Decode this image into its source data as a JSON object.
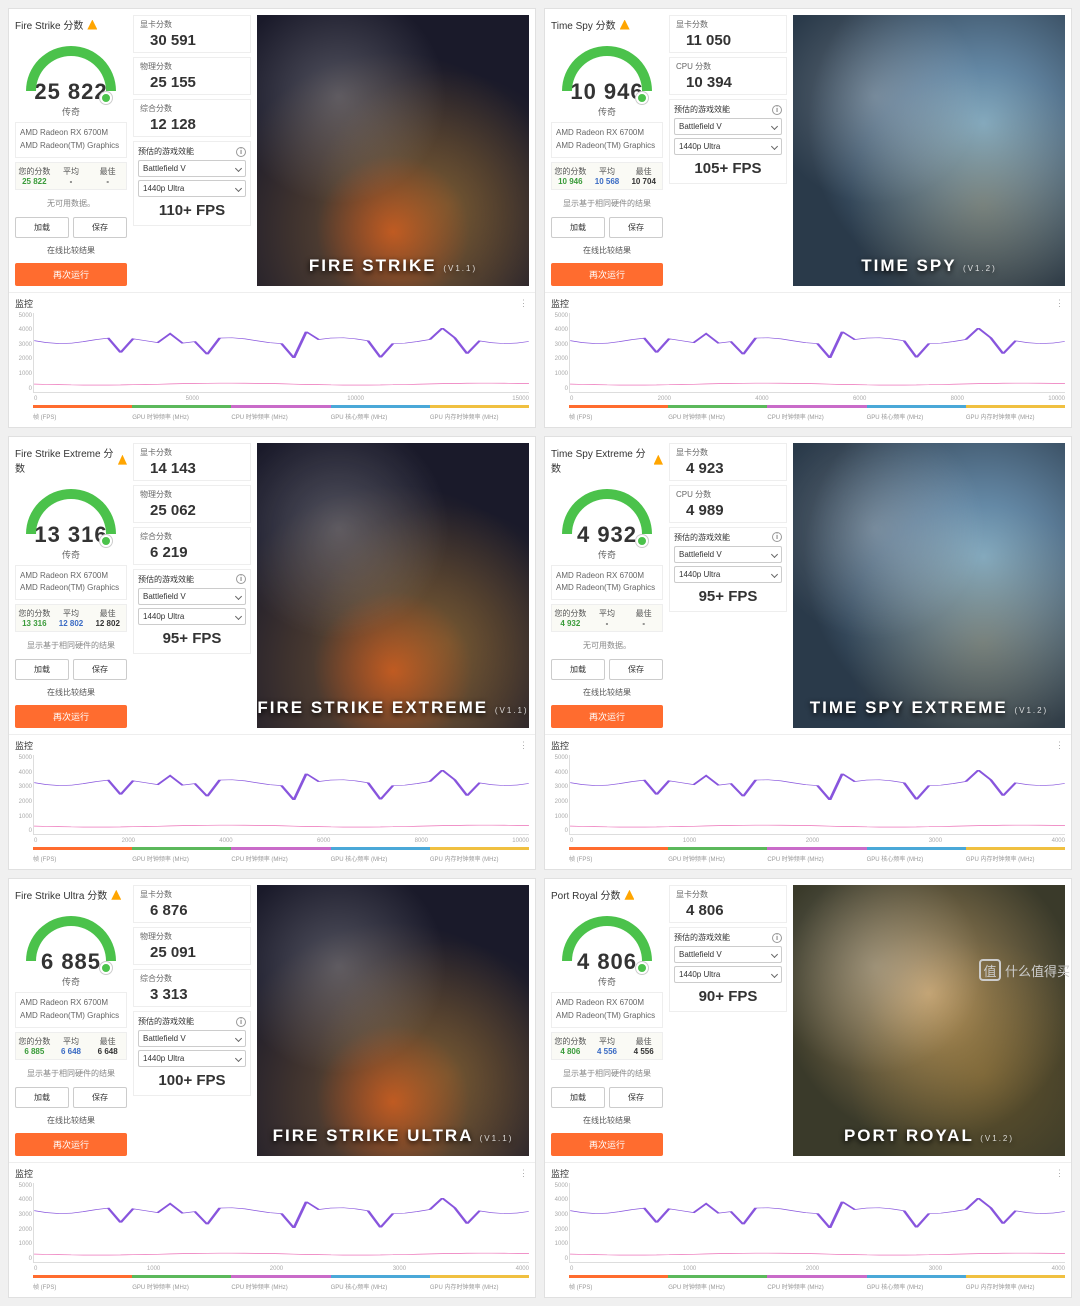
{
  "common": {
    "gpu1": "AMD Radeon RX 6700M",
    "gpu2": "AMD Radeon(TM) Graphics",
    "legend_label": "传奇",
    "score_suffix": " 分数",
    "your_score": "您的分数",
    "avg": "平均",
    "best": "最佳",
    "no_data": "无可用数据。",
    "show_hw_results": "显示基于相同硬件的结果",
    "btn_load": "加载",
    "btn_save": "保存",
    "btn_compare": "在线比较结果",
    "btn_rerun": "再次运行",
    "gpu_score": "显卡分数",
    "physics_score": "物理分数",
    "cpu_score": "CPU 分数",
    "combined_score": "综合分数",
    "est_title": "预估的游戏效能",
    "game": "Battlefield V",
    "res": "1440p Ultra",
    "monitor": "监控",
    "watermark": "什么值得买",
    "chart_ylabels": [
      "5000",
      "4000",
      "3000",
      "2000",
      "1000",
      "0"
    ],
    "chart_xlabels_fs": [
      "0",
      "5000",
      "10000",
      "15000"
    ],
    "chart_xlabels_ts": [
      "0",
      "2000",
      "4000",
      "6000",
      "8000",
      "10000"
    ],
    "chart_xlabels_short": [
      "0",
      "1000",
      "2000",
      "3000",
      "4000"
    ],
    "seg_colors": [
      "#ff6c2f",
      "#5bb85b",
      "#c96bc9",
      "#4aa8d8",
      "#f0c040"
    ],
    "seg_labels": [
      "帧 (FPS)",
      "GPU 时钟频率 (MHz)",
      "CPU 时钟频率 (MHz)",
      "GPU 核心频率 (MHz)",
      "GPU 内存时钟频率 (MHz)"
    ],
    "line_color": "#8855dd",
    "line2_color": "#e855aa"
  },
  "panels": [
    {
      "id": "fs",
      "title": "Fire Strike",
      "hero_class": "fire",
      "hero": "FIRE STRIKE",
      "hero_v": "(V1.1)",
      "score": "25 822",
      "metrics": [
        [
          "gpu_score",
          "30 591"
        ],
        [
          "physics_score",
          "25 155"
        ],
        [
          "combined_score",
          "12 128"
        ]
      ],
      "fps": "110+ FPS",
      "stats": {
        "your": "25 822",
        "your_c": "v-green",
        "avg": "-",
        "best": "-"
      },
      "note": "no_data",
      "left_extra": "btns",
      "xaxis": "chart_xlabels_fs",
      "monitor_wide": true
    },
    {
      "id": "ts",
      "title": "Time Spy",
      "hero_class": "time",
      "hero": "TIME SPY",
      "hero_v": "(V1.2)",
      "score": "10 946",
      "metrics": [
        [
          "gpu_score",
          "11 050"
        ],
        [
          "cpu_score",
          "10 394"
        ]
      ],
      "fps": "105+ FPS",
      "stats": {
        "your": "10 946",
        "your_c": "v-green",
        "avg": "10 568",
        "avg_c": "v-blue",
        "best": "10 704"
      },
      "note": "show_hw_results",
      "left_extra": "btns",
      "xaxis": "chart_xlabels_ts",
      "monitor_wide": true
    },
    {
      "id": "fse",
      "title": "Fire Strike Extreme",
      "hero_class": "fire",
      "hero": "FIRE STRIKE EXTREME",
      "hero_v": "(V1.1)",
      "score": "13 316",
      "metrics": [
        [
          "gpu_score",
          "14 143"
        ],
        [
          "physics_score",
          "25 062"
        ],
        [
          "combined_score",
          "6 219"
        ]
      ],
      "fps": "95+ FPS",
      "stats": {
        "your": "13 316",
        "your_c": "v-green",
        "avg": "12 802",
        "avg_c": "v-blue",
        "best": "12 802"
      },
      "note": "show_hw_results",
      "left_extra": "btns",
      "xaxis": "chart_xlabels_ts",
      "monitor_wide": true
    },
    {
      "id": "tse",
      "title": "Time Spy Extreme",
      "hero_class": "time",
      "hero": "TIME SPY EXTREME",
      "hero_v": "(V1.2)",
      "score": "4 932",
      "metrics": [
        [
          "gpu_score",
          "4 923"
        ],
        [
          "cpu_score",
          "4 989"
        ]
      ],
      "fps": "95+ FPS",
      "stats": {
        "your": "4 932",
        "your_c": "v-green",
        "avg": "-",
        "best": "-"
      },
      "note": "no_data",
      "left_extra": "btns",
      "xaxis": "chart_xlabels_short",
      "monitor_wide": true
    },
    {
      "id": "fsu",
      "title": "Fire Strike Ultra",
      "hero_class": "fire",
      "hero": "FIRE STRIKE ULTRA",
      "hero_v": "(V1.1)",
      "score": "6 885",
      "metrics": [
        [
          "gpu_score",
          "6 876"
        ],
        [
          "physics_score",
          "25 091"
        ],
        [
          "combined_score",
          "3 313"
        ]
      ],
      "fps": "100+ FPS",
      "stats": {
        "your": "6 885",
        "your_c": "v-green",
        "avg": "6 648",
        "avg_c": "v-blue",
        "best": "6 648"
      },
      "note": "show_hw_results",
      "left_extra": "btns",
      "xaxis": "chart_xlabels_short",
      "monitor_wide": true
    },
    {
      "id": "pr",
      "title": "Port Royal",
      "hero_class": "port",
      "hero": "PORT ROYAL",
      "hero_v": "(V1.2)",
      "score": "4 806",
      "metrics": [
        [
          "gpu_score",
          "4 806"
        ]
      ],
      "fps": "90+ FPS",
      "stats": {
        "your": "4 806",
        "your_c": "v-green",
        "avg": "4 556",
        "avg_c": "v-blue",
        "best": "4 556"
      },
      "note": "show_hw_results",
      "left_extra": "btns",
      "xaxis": "chart_xlabels_short",
      "monitor_wide": true
    }
  ]
}
